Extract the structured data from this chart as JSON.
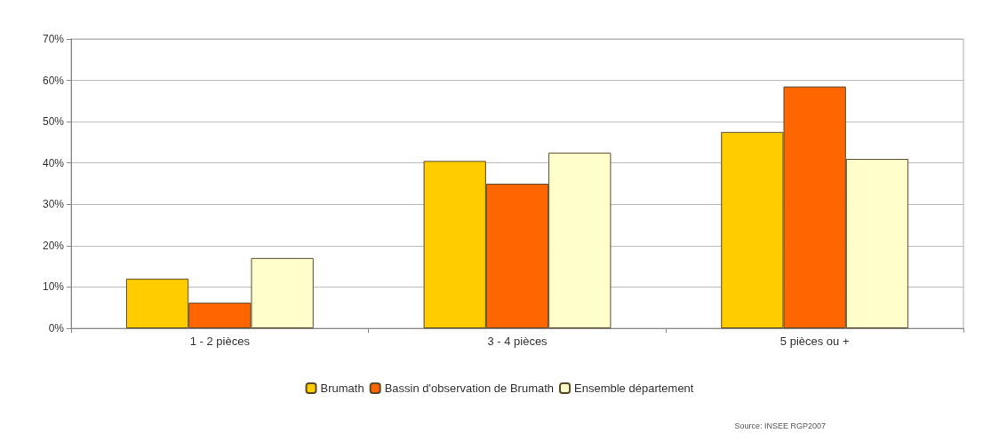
{
  "chart_data": {
    "type": "bar",
    "categories": [
      "1 - 2 pièces",
      "3 - 4 pièces",
      "5 pièces ou +"
    ],
    "series": [
      {
        "name": "Brumath",
        "color": "#ffcc00",
        "values": [
          12,
          40.5,
          47.5
        ]
      },
      {
        "name": "Bassin d'observation de Brumath",
        "color": "#ff6600",
        "values": [
          6.2,
          35,
          58.5
        ]
      },
      {
        "name": "Ensemble département",
        "color": "#ffffcc",
        "values": [
          17,
          42.5,
          41
        ]
      }
    ],
    "ylim": [
      0,
      70
    ],
    "yticks": [
      {
        "value": 0,
        "label": "0%"
      },
      {
        "value": 10,
        "label": "10%"
      },
      {
        "value": 20,
        "label": "20%"
      },
      {
        "value": 30,
        "label": "30%"
      },
      {
        "value": 40,
        "label": "40%"
      },
      {
        "value": 50,
        "label": "50%"
      },
      {
        "value": 60,
        "label": "60%"
      },
      {
        "value": 70,
        "label": "70%"
      }
    ],
    "grid": "y",
    "legend": "bottom",
    "annotations": [
      "Source: INSEE RGP2007"
    ]
  }
}
